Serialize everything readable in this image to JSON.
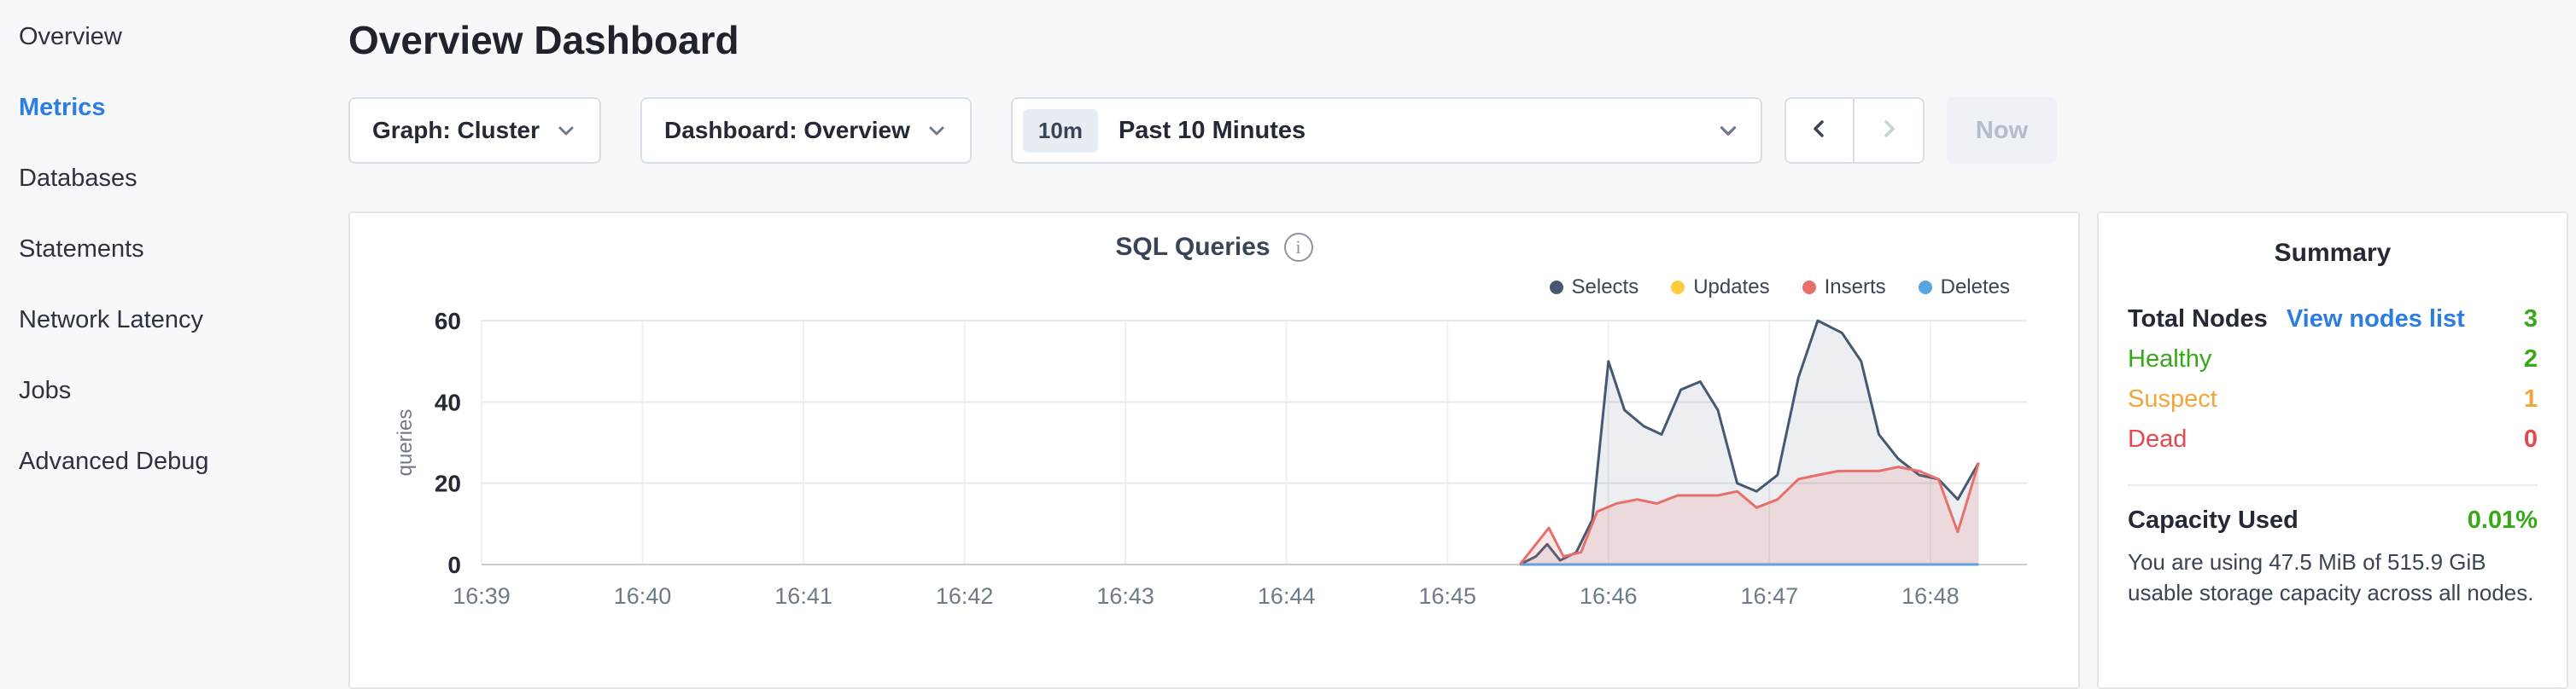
{
  "sidebar": {
    "items": [
      {
        "label": "Overview"
      },
      {
        "label": "Metrics"
      },
      {
        "label": "Databases"
      },
      {
        "label": "Statements"
      },
      {
        "label": "Network Latency"
      },
      {
        "label": "Jobs"
      },
      {
        "label": "Advanced Debug"
      }
    ],
    "active": "Metrics",
    "active_color": "#2b7de1"
  },
  "header": {
    "title": "Overview Dashboard"
  },
  "toolbar": {
    "graph_dropdown": "Graph: Cluster",
    "dashboard_dropdown": "Dashboard: Overview",
    "time_badge": "10m",
    "time_label": "Past 10 Minutes",
    "prev_icon": "chevron-left",
    "next_icon": "chevron-right",
    "now_label": "Now"
  },
  "chart": {
    "title": "SQL Queries"
  },
  "chart_data": {
    "type": "area",
    "title": "SQL Queries",
    "xlabel": "",
    "ylabel": "queries",
    "ylim": [
      0,
      60
    ],
    "yticks": [
      0,
      20,
      40,
      60
    ],
    "x_ticks": [
      "16:39",
      "16:40",
      "16:41",
      "16:42",
      "16:43",
      "16:44",
      "16:45",
      "16:46",
      "16:47",
      "16:48"
    ],
    "x_domain": [
      0,
      9.6
    ],
    "grid": true,
    "legend_position": "top-right",
    "series": [
      {
        "name": "Selects",
        "color": "#475872",
        "fill": "rgba(71,88,114,0.10)",
        "points": [
          [
            6.45,
            0
          ],
          [
            6.55,
            2
          ],
          [
            6.62,
            5
          ],
          [
            6.7,
            1
          ],
          [
            6.8,
            3
          ],
          [
            6.9,
            11
          ],
          [
            7.0,
            50
          ],
          [
            7.1,
            38
          ],
          [
            7.22,
            34
          ],
          [
            7.33,
            32
          ],
          [
            7.45,
            43
          ],
          [
            7.57,
            45
          ],
          [
            7.68,
            38
          ],
          [
            7.8,
            20
          ],
          [
            7.92,
            18
          ],
          [
            8.05,
            22
          ],
          [
            8.18,
            46
          ],
          [
            8.3,
            60
          ],
          [
            8.45,
            57
          ],
          [
            8.57,
            50
          ],
          [
            8.68,
            32
          ],
          [
            8.8,
            26
          ],
          [
            8.93,
            22
          ],
          [
            9.05,
            21
          ],
          [
            9.17,
            16
          ],
          [
            9.3,
            25
          ]
        ]
      },
      {
        "name": "Updates",
        "color": "#ffcd3c",
        "fill": "rgba(255,205,60,0.12)",
        "points": [
          [
            6.45,
            0
          ],
          [
            9.3,
            0
          ]
        ]
      },
      {
        "name": "Inserts",
        "color": "#e8706c",
        "fill": "rgba(232,112,108,0.16)",
        "points": [
          [
            6.45,
            0
          ],
          [
            6.55,
            5
          ],
          [
            6.63,
            9
          ],
          [
            6.72,
            2
          ],
          [
            6.83,
            3
          ],
          [
            6.93,
            13
          ],
          [
            7.05,
            15
          ],
          [
            7.18,
            16
          ],
          [
            7.3,
            15
          ],
          [
            7.43,
            17
          ],
          [
            7.55,
            17
          ],
          [
            7.68,
            17
          ],
          [
            7.8,
            18
          ],
          [
            7.92,
            14
          ],
          [
            8.05,
            16
          ],
          [
            8.18,
            21
          ],
          [
            8.3,
            22
          ],
          [
            8.43,
            23
          ],
          [
            8.55,
            23
          ],
          [
            8.68,
            23
          ],
          [
            8.8,
            24
          ],
          [
            8.93,
            23
          ],
          [
            9.05,
            21
          ],
          [
            9.17,
            8
          ],
          [
            9.3,
            25
          ]
        ]
      },
      {
        "name": "Deletes",
        "color": "#57a6e0",
        "fill": "rgba(87,166,224,0.12)",
        "points": [
          [
            6.45,
            0
          ],
          [
            9.3,
            0
          ]
        ]
      }
    ]
  },
  "summary": {
    "title": "Summary",
    "total_nodes_label": "Total Nodes",
    "view_nodes_link": "View nodes list",
    "total_nodes_value": "3",
    "rows": [
      {
        "label": "Healthy",
        "value": "2",
        "color": "#37a817"
      },
      {
        "label": "Suspect",
        "value": "1",
        "color": "#f2a53a"
      },
      {
        "label": "Dead",
        "value": "0",
        "color": "#e5484d"
      }
    ],
    "capacity_label": "Capacity Used",
    "capacity_value": "0.01%",
    "capacity_desc": "You are using 47.5 MiB of 515.9 GiB usable storage capacity across all nodes.",
    "colors": {
      "green": "#37a817",
      "link": "#2b7de1"
    }
  }
}
